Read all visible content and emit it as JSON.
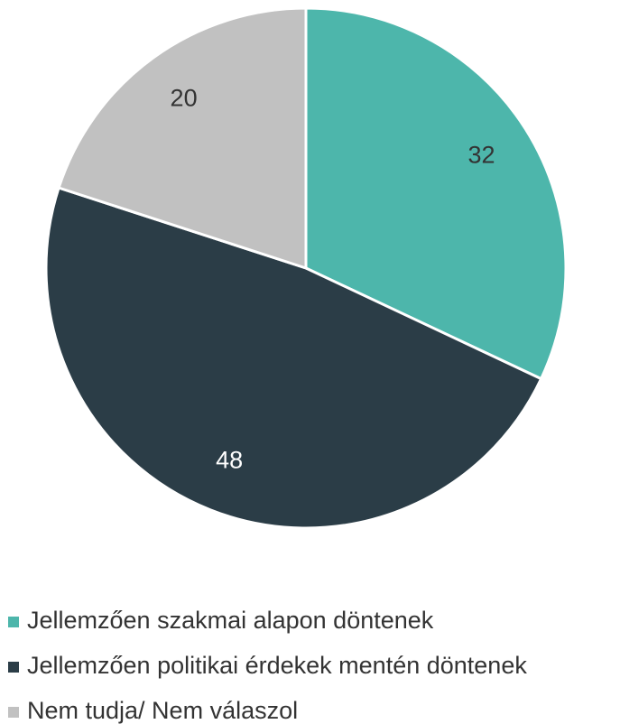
{
  "chart_data": {
    "type": "pie",
    "categories": [
      "Jellemzően szakmai alapon döntenek",
      "Jellemzően politikai érdekek mentén döntenek",
      "Nem tudja/ Nem válaszol"
    ],
    "values": [
      32,
      48,
      20
    ],
    "colors": [
      "#4db6ab",
      "#2b3d47",
      "#c1c1c1"
    ],
    "legend": "bottom"
  }
}
